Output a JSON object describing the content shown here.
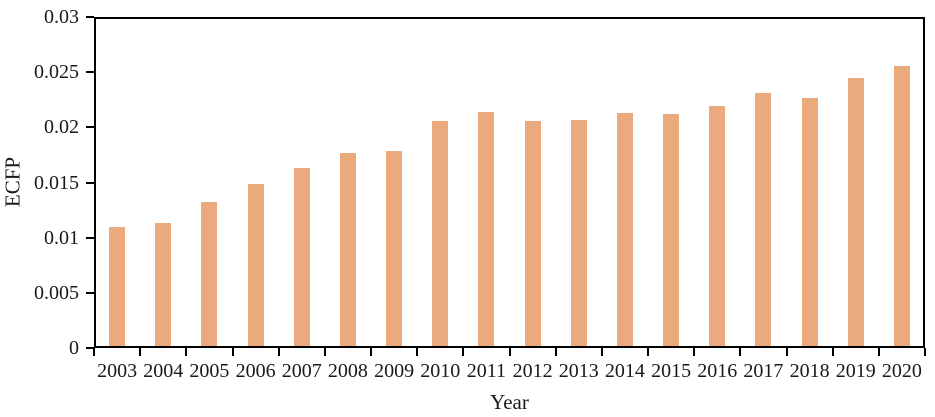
{
  "chart_data": {
    "type": "bar",
    "title": "",
    "xlabel": "Year",
    "ylabel": "ECFP",
    "categories": [
      "2003",
      "2004",
      "2005",
      "2006",
      "2007",
      "2008",
      "2009",
      "2010",
      "2011",
      "2012",
      "2013",
      "2014",
      "2015",
      "2016",
      "2017",
      "2018",
      "2019",
      "2020"
    ],
    "series": [
      {
        "name": "ECFP",
        "values": [
          0.011,
          0.0113,
          0.0132,
          0.0149,
          0.0163,
          0.0177,
          0.0179,
          0.0206,
          0.0214,
          0.0206,
          0.0207,
          0.0213,
          0.0212,
          0.0219,
          0.0231,
          0.0227,
          0.0245,
          0.0256
        ]
      }
    ],
    "ylim": [
      0,
      0.03
    ],
    "yticks": [
      0,
      0.005,
      0.01,
      0.015,
      0.02,
      0.025,
      0.03
    ],
    "ytick_labels": [
      "0",
      "0.005",
      "0.01",
      "0.015",
      "0.02",
      "0.025",
      "0.03"
    ],
    "bar_color": "#EBA97E",
    "axis_color": "#000000",
    "grid": false,
    "legend": null
  }
}
